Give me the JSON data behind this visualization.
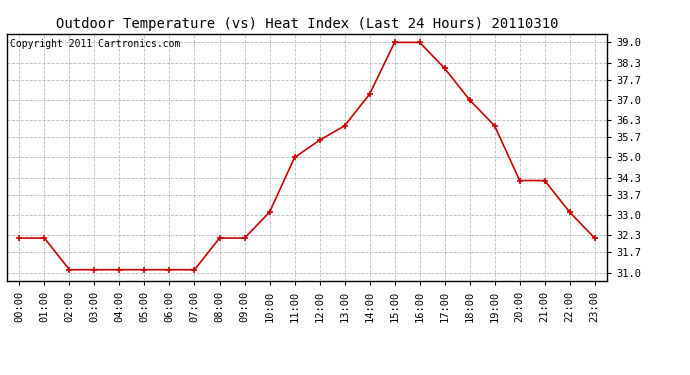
{
  "title": "Outdoor Temperature (vs) Heat Index (Last 24 Hours) 20110310",
  "copyright_text": "Copyright 2011 Cartronics.com",
  "x_labels": [
    "00:00",
    "01:00",
    "02:00",
    "03:00",
    "04:00",
    "05:00",
    "06:00",
    "07:00",
    "08:00",
    "09:00",
    "10:00",
    "11:00",
    "12:00",
    "13:00",
    "14:00",
    "15:00",
    "16:00",
    "17:00",
    "18:00",
    "19:00",
    "20:00",
    "21:00",
    "22:00",
    "23:00"
  ],
  "y_values": [
    32.2,
    32.2,
    31.1,
    31.1,
    31.1,
    31.1,
    31.1,
    31.1,
    32.2,
    32.2,
    33.1,
    35.0,
    35.6,
    36.1,
    37.2,
    39.0,
    39.0,
    38.1,
    37.0,
    36.1,
    34.2,
    34.2,
    33.1,
    32.2
  ],
  "y_ticks": [
    31.0,
    31.7,
    32.3,
    33.0,
    33.7,
    34.3,
    35.0,
    35.7,
    36.3,
    37.0,
    37.7,
    38.3,
    39.0
  ],
  "ylim": [
    30.7,
    39.3
  ],
  "line_color": "#cc0000",
  "marker": "+",
  "marker_size": 5,
  "line_width": 1.2,
  "bg_color": "#ffffff",
  "plot_bg_color": "#ffffff",
  "grid_color": "#bbbbbb",
  "grid_style": "--",
  "title_fontsize": 10,
  "copyright_fontsize": 7,
  "tick_fontsize": 7.5
}
